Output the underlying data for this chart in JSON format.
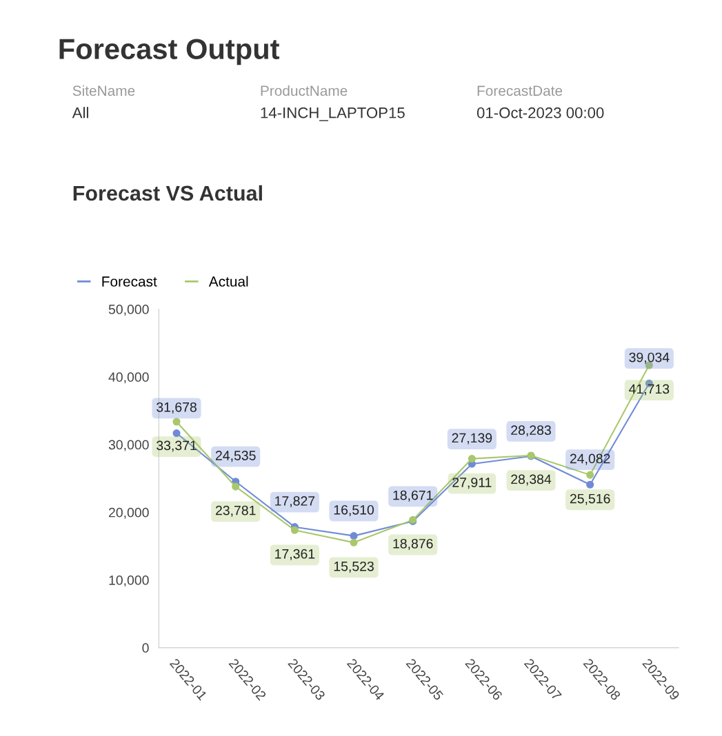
{
  "chart_data": {
    "type": "line",
    "title": "Forecast VS Actual",
    "annotations": [
      "Forecast Output",
      "SiteName",
      "All",
      "ProductName",
      "14-INCH_LAPTOP15",
      "ForecastDate",
      "01-Oct-2023 00:00"
    ],
    "categories": [
      "2022-01",
      "2022-02",
      "2022-03",
      "2022-04",
      "2022-05",
      "2022-06",
      "2022-07",
      "2022-08",
      "2022-09"
    ],
    "series": [
      {
        "name": "Forecast",
        "color": "#6f8bd8",
        "values": [
          31678,
          24535,
          17827,
          16510,
          18671,
          27139,
          28283,
          24082,
          39034
        ],
        "value_labels": [
          "31,678",
          "24,535",
          "17,827",
          "16,510",
          "18,671",
          "27,139",
          "28,283",
          "24,082",
          "39,034"
        ]
      },
      {
        "name": "Actual",
        "color": "#a9c76b",
        "values": [
          33371,
          23781,
          17361,
          15523,
          18876,
          27911,
          28384,
          25516,
          41713
        ],
        "value_labels": [
          "33,371",
          "23,781",
          "17,361",
          "15,523",
          "18,876",
          "27,911",
          "28,384",
          "25,516",
          "41,713"
        ]
      }
    ],
    "ylim": [
      0,
      50000
    ],
    "yticks": [
      0,
      {
        "value": 10000,
        "label": "10,000"
      },
      {
        "value": 20000,
        "label": "20,000"
      },
      {
        "value": 30000,
        "label": "30,000"
      },
      {
        "value": 40000,
        "label": "40,000"
      },
      {
        "value": 50000,
        "label": "50,000"
      }
    ],
    "legend": "top left",
    "marker": "circle",
    "line_style": "solid",
    "grid": false
  }
}
